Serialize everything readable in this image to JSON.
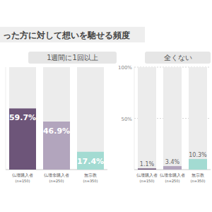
{
  "header": {
    "title": "った方に対して想いを馳せる頻度"
  },
  "chart_data": [
    {
      "type": "bar",
      "title": "1週間に1回以上",
      "categories": [
        "仏壇購入者 (n=150)",
        "仏壇非購入者 (n=250)",
        "無宗教 (n=350)"
      ],
      "values": [
        59.7,
        46.9,
        17.4
      ],
      "value_labels": [
        "59.7%",
        "46.9%",
        "17.4%"
      ],
      "colors": [
        "#6d5579",
        "#b2a5bd",
        "#a3dbd2"
      ],
      "ylim": [
        0,
        100
      ],
      "data_labels": true,
      "tick_labels": "x"
    },
    {
      "type": "bar",
      "title": "全くない",
      "categories": [
        "仏壇購入者 (n=150)",
        "仏壇非購入者 (n=250)",
        "無宗教 (n=350)"
      ],
      "values": [
        1.1,
        3.4,
        10.3
      ],
      "value_labels": [
        "1.1%",
        "3.4%",
        "10.3%"
      ],
      "colors": [
        "#6d5579",
        "#b2a5bd",
        "#a3dbd2"
      ],
      "ylim": [
        0,
        100
      ],
      "yticks": [
        {
          "value": 50,
          "label": "50%"
        },
        {
          "value": 100,
          "label": "100%"
        }
      ],
      "grid": true,
      "data_labels": true
    }
  ]
}
